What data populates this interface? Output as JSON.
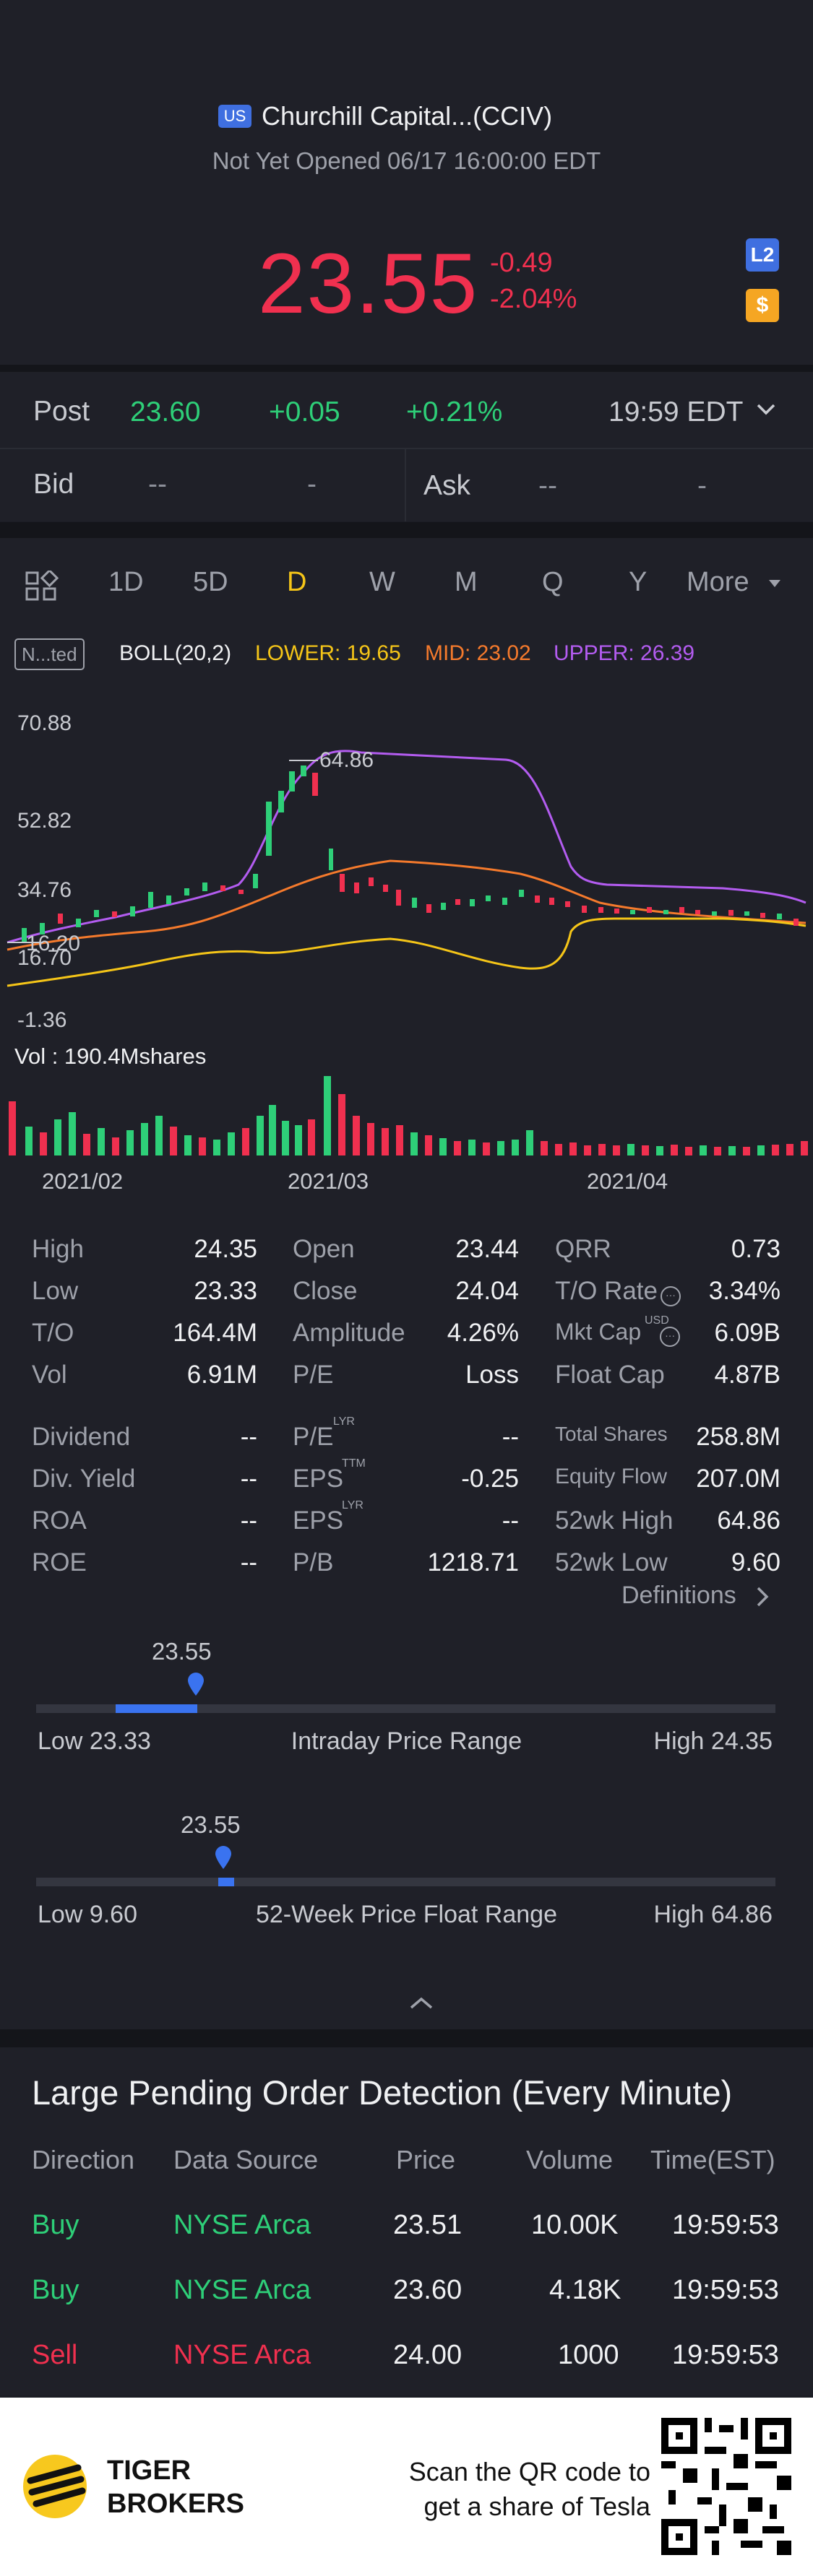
{
  "header": {
    "market_badge": "US",
    "title": "Churchill Capital...(CCIV)",
    "status": "Not Yet Opened 06/17 16:00:00 EDT",
    "price": "23.55",
    "change": "-0.49",
    "change_pct": "-2.04%",
    "l2_badge": "L2",
    "dollar_badge": "$"
  },
  "post": {
    "label": "Post",
    "price": "23.60",
    "change": "+0.05",
    "change_pct": "+0.21%",
    "time": "19:59 EDT"
  },
  "quote": {
    "bid_label": "Bid",
    "bid_price": "--",
    "bid_size": "-",
    "ask_label": "Ask",
    "ask_price": "--",
    "ask_size": "-"
  },
  "tabs": [
    "1D",
    "5D",
    "D",
    "W",
    "M",
    "Q",
    "Y",
    "More"
  ],
  "active_tab": "D",
  "indicator": {
    "badge": "N...ted",
    "name": "BOLL(20,2)",
    "lower": "LOWER: 19.65",
    "mid": "MID: 23.02",
    "upper": "UPPER: 26.39"
  },
  "chart_labels": {
    "y_ticks": [
      "70.88",
      "52.82",
      "34.76",
      "16.70",
      "-1.36"
    ],
    "max_label": "64.86",
    "min_label": "16.20",
    "vol_label": "Vol : 190.4Mshares",
    "x_ticks": [
      "2021/02",
      "2021/03",
      "2021/04"
    ]
  },
  "stats": {
    "col1": [
      [
        "High",
        "24.35"
      ],
      [
        "Low",
        "23.33"
      ],
      [
        "T/O",
        "164.4M"
      ],
      [
        "Vol",
        "6.91M"
      ]
    ],
    "col2": [
      [
        "Open",
        "23.44"
      ],
      [
        "Close",
        "24.04"
      ],
      [
        "Amplitude",
        "4.26%"
      ],
      [
        "P/E",
        "Loss"
      ]
    ],
    "col3": [
      [
        "QRR",
        "0.73"
      ],
      [
        "T/O Rate",
        "3.34%"
      ],
      [
        "Mkt Cap",
        "6.09B"
      ],
      [
        "Float Cap",
        "4.87B"
      ]
    ],
    "col4": [
      [
        "Dividend",
        "--"
      ],
      [
        "Div. Yield",
        "--"
      ],
      [
        "ROA",
        "--"
      ],
      [
        "ROE",
        "--"
      ]
    ],
    "col5": [
      [
        "P/E",
        "--"
      ],
      [
        "EPS",
        "-0.25"
      ],
      [
        "EPS",
        "--"
      ],
      [
        "P/B",
        "1218.71"
      ]
    ],
    "col6": [
      [
        "Total Shares",
        "258.8M"
      ],
      [
        "Equity Flow",
        "207.0M"
      ],
      [
        "52wk High",
        "64.86"
      ],
      [
        "52wk Low",
        "9.60"
      ]
    ],
    "sup_lyr": "LYR",
    "sup_ttm": "TTM",
    "sup_usd": "USD",
    "definitions": "Definitions"
  },
  "intraday": {
    "current": "23.55",
    "low": "Low 23.33",
    "title": "Intraday Price Range",
    "high": "High 24.35",
    "position": 0.21
  },
  "week52": {
    "current": "23.55",
    "low": "Low 9.60",
    "title": "52-Week Price Float Range",
    "high": "High 64.86",
    "position": 0.25
  },
  "orders": {
    "title": "Large Pending Order Detection (Every Minute)",
    "headers": [
      "Direction",
      "Data Source",
      "Price",
      "Volume",
      "Time(EST)"
    ],
    "rows": [
      [
        "Buy",
        "NYSE Arca",
        "23.51",
        "10.00K",
        "19:59:53"
      ],
      [
        "Buy",
        "NYSE Arca",
        "23.60",
        "4.18K",
        "19:59:53"
      ],
      [
        "Sell",
        "NYSE Arca",
        "24.00",
        "1000",
        "19:59:53"
      ]
    ]
  },
  "footer": {
    "brand_line1": "TIGER",
    "brand_line2": "BROKERS",
    "cta_line1": "Scan the QR code to",
    "cta_line2": "get a share of Tesla"
  },
  "colors": {
    "up": "#2ecf78",
    "down": "#f0304f",
    "accent": "#f5c518",
    "boll_upper": "#b35cf0",
    "boll_mid": "#f57a2c",
    "boll_lower": "#f5c518"
  }
}
